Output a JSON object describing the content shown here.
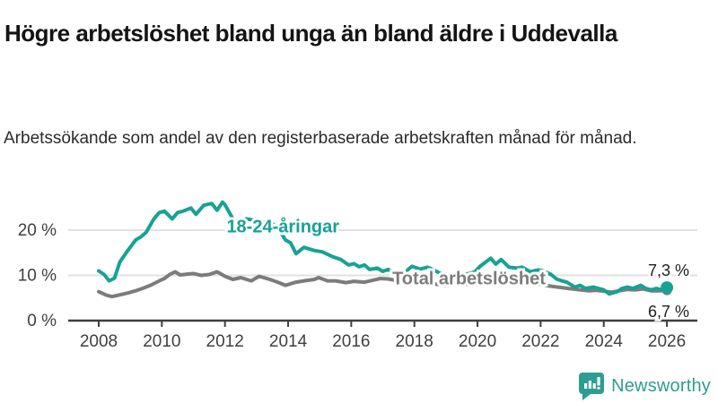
{
  "header": {
    "title": "Högre arbetslöshet bland unga än bland äldre i Uddevalla",
    "subtitle": "Arbetssökande som andel av den registerbaserade arbetskraften månad för månad."
  },
  "footer": {
    "brand_name": "Newsworthy",
    "brand_color": "#2d9d92",
    "logo_icon": "bar-chart-speech-bubble-icon"
  },
  "chart_data": {
    "type": "line",
    "title": "Högre arbetslöshet bland unga än bland äldre i Uddevalla",
    "subtitle": "Arbetssökande som andel av den registerbaserade arbetskraften månad för månad.",
    "xlabel": "",
    "ylabel": "",
    "xlim": [
      2007.0,
      2027.0
    ],
    "ylim": [
      0,
      28
    ],
    "grid": "horizontal",
    "x_ticks": [
      2008,
      2010,
      2012,
      2014,
      2016,
      2018,
      2020,
      2022,
      2024,
      2026
    ],
    "y_ticks": [
      {
        "value": 0,
        "label": "0 %"
      },
      {
        "value": 10,
        "label": "10 %"
      },
      {
        "value": 20,
        "label": "20 %"
      }
    ],
    "colors": {
      "young": "#17a295",
      "total": "#7c7c7c",
      "grid": "#e2e2e2",
      "axis": "#3f3f3f",
      "tick_text": "#404040"
    },
    "series": [
      {
        "name": "Total arbetslöshet",
        "color": "#7c7c7c",
        "label_inline": {
          "x": 2017.3,
          "y": 8.0,
          "anchor": "start"
        },
        "end_value_label": "6,7 %",
        "points": [
          [
            2008.0,
            6.4
          ],
          [
            2008.25,
            5.6
          ],
          [
            2008.42,
            5.3
          ],
          [
            2008.67,
            5.7
          ],
          [
            2008.92,
            6.1
          ],
          [
            2009.17,
            6.6
          ],
          [
            2009.42,
            7.2
          ],
          [
            2009.67,
            7.9
          ],
          [
            2009.92,
            8.8
          ],
          [
            2010.08,
            9.3
          ],
          [
            2010.25,
            10.2
          ],
          [
            2010.42,
            10.8
          ],
          [
            2010.58,
            10.1
          ],
          [
            2010.83,
            10.3
          ],
          [
            2011.0,
            10.4
          ],
          [
            2011.25,
            10.0
          ],
          [
            2011.5,
            10.2
          ],
          [
            2011.75,
            10.8
          ],
          [
            2012.0,
            9.8
          ],
          [
            2012.25,
            9.1
          ],
          [
            2012.5,
            9.5
          ],
          [
            2012.83,
            8.8
          ],
          [
            2013.08,
            9.8
          ],
          [
            2013.42,
            9.1
          ],
          [
            2013.67,
            8.5
          ],
          [
            2013.92,
            7.8
          ],
          [
            2014.25,
            8.5
          ],
          [
            2014.5,
            8.8
          ],
          [
            2014.83,
            9.1
          ],
          [
            2014.97,
            9.5
          ],
          [
            2015.25,
            8.8
          ],
          [
            2015.5,
            8.8
          ],
          [
            2015.83,
            8.4
          ],
          [
            2016.08,
            8.7
          ],
          [
            2016.42,
            8.5
          ],
          [
            2016.67,
            8.9
          ],
          [
            2016.92,
            9.3
          ],
          [
            2017.17,
            9.2
          ],
          [
            2017.5,
            8.8
          ],
          [
            2017.83,
            9.1
          ],
          [
            2018.08,
            8.6
          ],
          [
            2018.42,
            8.3
          ],
          [
            2018.75,
            8.0
          ],
          [
            2019.08,
            7.8
          ],
          [
            2019.42,
            7.9
          ],
          [
            2019.75,
            8.1
          ],
          [
            2020.08,
            8.8
          ],
          [
            2020.42,
            10.2
          ],
          [
            2020.67,
            9.9
          ],
          [
            2021.0,
            9.3
          ],
          [
            2021.33,
            8.8
          ],
          [
            2021.67,
            8.4
          ],
          [
            2022.0,
            8.0
          ],
          [
            2022.33,
            7.6
          ],
          [
            2022.67,
            7.3
          ],
          [
            2023.0,
            7.0
          ],
          [
            2023.25,
            6.8
          ],
          [
            2023.5,
            6.6
          ],
          [
            2023.75,
            6.7
          ],
          [
            2024.0,
            6.5
          ],
          [
            2024.25,
            6.3
          ],
          [
            2024.5,
            6.6
          ],
          [
            2024.75,
            6.9
          ],
          [
            2025.0,
            6.8
          ],
          [
            2025.25,
            7.0
          ],
          [
            2025.5,
            6.6
          ],
          [
            2025.75,
            6.6
          ],
          [
            2026.0,
            6.7
          ]
        ]
      },
      {
        "name": "18-24-åringar",
        "color": "#17a295",
        "label_inline": {
          "x": 2012.05,
          "y": 19.5,
          "anchor": "start"
        },
        "end_value_label": "7,3 %",
        "points": [
          [
            2008.0,
            11.0
          ],
          [
            2008.17,
            10.2
          ],
          [
            2008.33,
            8.8
          ],
          [
            2008.5,
            9.4
          ],
          [
            2008.67,
            13.0
          ],
          [
            2008.92,
            15.5
          ],
          [
            2009.17,
            17.8
          ],
          [
            2009.33,
            18.5
          ],
          [
            2009.5,
            19.5
          ],
          [
            2009.75,
            22.5
          ],
          [
            2009.92,
            23.9
          ],
          [
            2010.08,
            24.2
          ],
          [
            2010.33,
            22.5
          ],
          [
            2010.5,
            23.9
          ],
          [
            2010.67,
            24.2
          ],
          [
            2010.92,
            24.9
          ],
          [
            2011.08,
            23.5
          ],
          [
            2011.33,
            25.5
          ],
          [
            2011.58,
            25.9
          ],
          [
            2011.75,
            24.4
          ],
          [
            2011.92,
            26.2
          ],
          [
            2012.0,
            25.6
          ],
          [
            2012.25,
            22.5
          ],
          [
            2012.42,
            21.9
          ],
          [
            2012.67,
            22.5
          ],
          [
            2012.92,
            22.2
          ],
          [
            2013.17,
            21.7
          ],
          [
            2013.42,
            21.9
          ],
          [
            2013.67,
            20.5
          ],
          [
            2013.92,
            17.8
          ],
          [
            2014.08,
            17.2
          ],
          [
            2014.25,
            14.8
          ],
          [
            2014.5,
            16.2
          ],
          [
            2014.83,
            15.5
          ],
          [
            2015.08,
            15.2
          ],
          [
            2015.42,
            14.1
          ],
          [
            2015.67,
            13.5
          ],
          [
            2015.92,
            12.3
          ],
          [
            2016.08,
            12.6
          ],
          [
            2016.25,
            11.9
          ],
          [
            2016.42,
            12.3
          ],
          [
            2016.58,
            11.3
          ],
          [
            2016.83,
            11.6
          ],
          [
            2017.0,
            10.9
          ],
          [
            2017.17,
            11.3
          ],
          [
            2017.42,
            10.6
          ],
          [
            2017.58,
            9.8
          ],
          [
            2017.75,
            11.0
          ],
          [
            2017.92,
            12.0
          ],
          [
            2018.17,
            11.4
          ],
          [
            2018.42,
            11.8
          ],
          [
            2018.67,
            11.0
          ],
          [
            2018.83,
            10.4
          ],
          [
            2019.08,
            10.2
          ],
          [
            2019.42,
            10.0
          ],
          [
            2019.67,
            10.3
          ],
          [
            2019.92,
            10.8
          ],
          [
            2020.08,
            12.0
          ],
          [
            2020.42,
            13.8
          ],
          [
            2020.58,
            12.5
          ],
          [
            2020.75,
            13.5
          ],
          [
            2021.0,
            11.8
          ],
          [
            2021.25,
            11.6
          ],
          [
            2021.42,
            11.8
          ],
          [
            2021.67,
            10.8
          ],
          [
            2021.92,
            11.2
          ],
          [
            2022.08,
            11.0
          ],
          [
            2022.33,
            10.2
          ],
          [
            2022.5,
            9.2
          ],
          [
            2022.67,
            8.8
          ],
          [
            2022.83,
            8.5
          ],
          [
            2023.08,
            7.4
          ],
          [
            2023.25,
            7.8
          ],
          [
            2023.42,
            7.1
          ],
          [
            2023.67,
            7.4
          ],
          [
            2023.83,
            7.1
          ],
          [
            2024.0,
            6.8
          ],
          [
            2024.17,
            5.9
          ],
          [
            2024.42,
            6.4
          ],
          [
            2024.58,
            7.1
          ],
          [
            2024.75,
            7.4
          ],
          [
            2024.92,
            7.1
          ],
          [
            2025.17,
            7.8
          ],
          [
            2025.33,
            7.1
          ],
          [
            2025.5,
            6.8
          ],
          [
            2025.67,
            7.1
          ],
          [
            2025.83,
            6.8
          ],
          [
            2026.0,
            7.3
          ]
        ]
      }
    ],
    "annotations": [
      {
        "text": "7,3 %",
        "series": "18-24-åringar",
        "position": "end-above"
      },
      {
        "text": "6,7 %",
        "series": "Total arbetslöshet",
        "position": "end-below"
      }
    ],
    "legend_position": "inline-labels"
  }
}
